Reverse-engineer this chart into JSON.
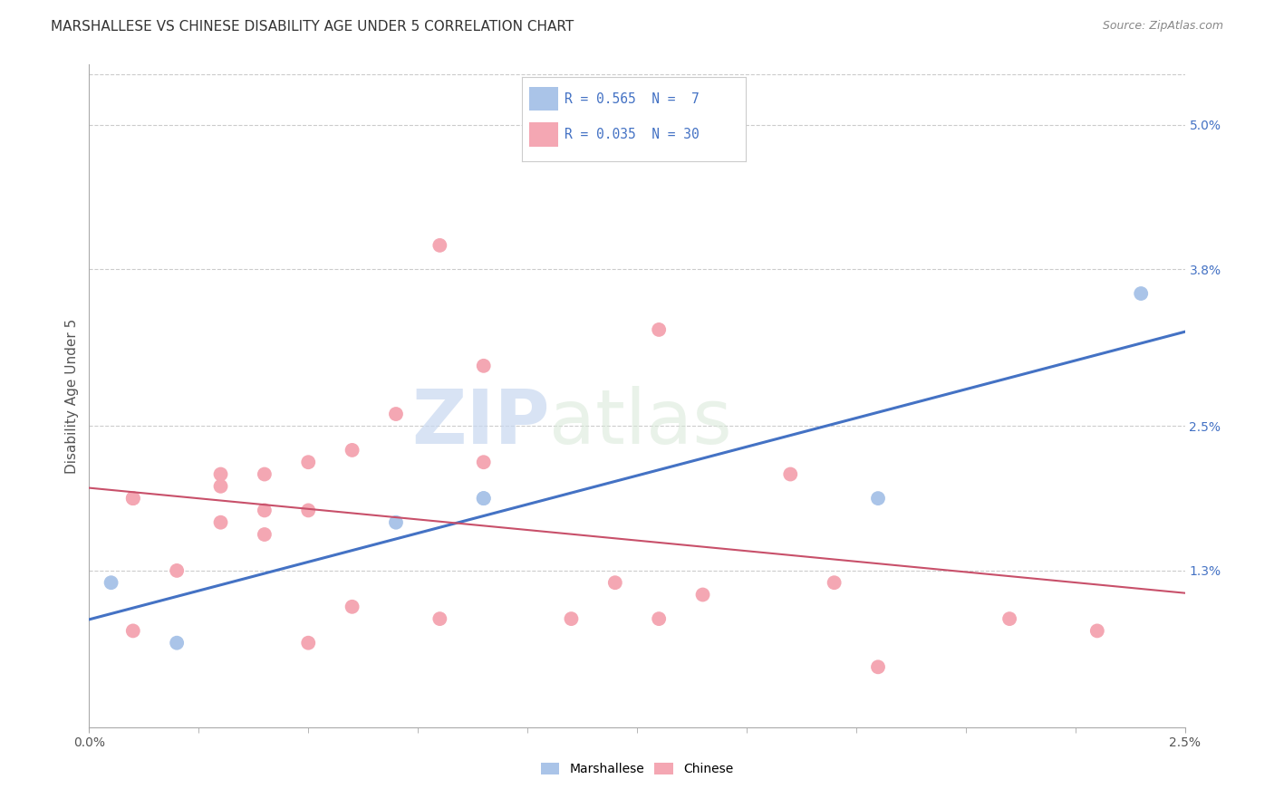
{
  "title": "MARSHALLESE VS CHINESE DISABILITY AGE UNDER 5 CORRELATION CHART",
  "source": "Source: ZipAtlas.com",
  "ylabel": "Disability Age Under 5",
  "right_yticks": [
    "5.0%",
    "3.8%",
    "2.5%",
    "1.3%"
  ],
  "right_ytick_vals": [
    0.05,
    0.038,
    0.025,
    0.013
  ],
  "xmin": 0.0,
  "xmax": 0.025,
  "ymin": 0.0,
  "ymax": 0.055,
  "marshallese_x": [
    0.0005,
    0.002,
    0.007,
    0.009,
    0.009,
    0.018,
    0.024
  ],
  "marshallese_y": [
    0.012,
    0.007,
    0.017,
    0.019,
    0.019,
    0.019,
    0.036
  ],
  "chinese_x": [
    0.001,
    0.001,
    0.001,
    0.002,
    0.003,
    0.003,
    0.003,
    0.004,
    0.004,
    0.004,
    0.005,
    0.005,
    0.005,
    0.006,
    0.006,
    0.007,
    0.008,
    0.008,
    0.009,
    0.009,
    0.011,
    0.012,
    0.013,
    0.013,
    0.014,
    0.016,
    0.017,
    0.018,
    0.021,
    0.023
  ],
  "chinese_y": [
    0.019,
    0.019,
    0.008,
    0.013,
    0.021,
    0.02,
    0.017,
    0.021,
    0.018,
    0.016,
    0.022,
    0.018,
    0.007,
    0.023,
    0.01,
    0.026,
    0.009,
    0.04,
    0.022,
    0.03,
    0.009,
    0.012,
    0.009,
    0.033,
    0.011,
    0.021,
    0.012,
    0.005,
    0.009,
    0.008
  ],
  "marshallese_R": 0.565,
  "marshallese_N": 7,
  "chinese_R": 0.035,
  "chinese_N": 30,
  "marshallese_color": "#aac4e8",
  "chinese_color": "#f4a7b3",
  "marshallese_line_color": "#4472c4",
  "chinese_line_color": "#c8506a",
  "title_fontsize": 11,
  "source_fontsize": 9,
  "legend_text_color": "#4472c4",
  "watermark_zip": "ZIP",
  "watermark_atlas": "atlas",
  "background_color": "#ffffff",
  "grid_color": "#cccccc"
}
